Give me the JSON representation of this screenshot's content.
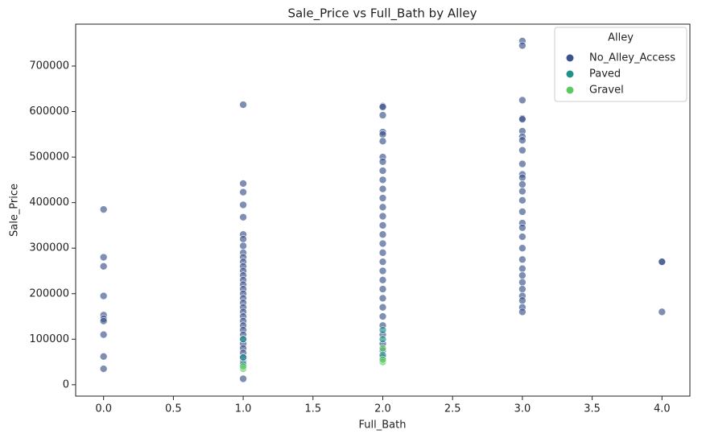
{
  "chart_data": {
    "type": "scatter",
    "title": "Sale_Price vs Full_Bath by Alley",
    "x_label": "Full_Bath",
    "y_label": "Sale_Price",
    "xlim": [
      -0.2,
      4.2
    ],
    "ylim": [
      -25000,
      792000
    ],
    "xticks": [
      {
        "value": 0,
        "label": "0.0"
      },
      {
        "value": 0.5,
        "label": "0.5"
      },
      {
        "value": 1,
        "label": "1.0"
      },
      {
        "value": 1.5,
        "label": "1.5"
      },
      {
        "value": 2,
        "label": "2.0"
      },
      {
        "value": 2.5,
        "label": "2.5"
      },
      {
        "value": 3,
        "label": "3.0"
      },
      {
        "value": 3.5,
        "label": "3.5"
      },
      {
        "value": 4,
        "label": "4.0"
      }
    ],
    "yticks": [
      0,
      100000,
      200000,
      300000,
      400000,
      500000,
      600000,
      700000
    ],
    "grid": false,
    "legend_title": "Alley",
    "legend_position": "upper-right",
    "series": [
      {
        "name": "No_Alley_Access",
        "color": "#3b528b",
        "x": [
          0,
          0,
          0,
          0,
          0,
          0,
          0,
          0,
          0,
          0,
          1,
          1,
          1,
          1,
          1,
          1,
          1,
          1,
          1,
          1,
          1,
          1,
          1,
          1,
          1,
          1,
          1,
          1,
          1,
          1,
          1,
          1,
          1,
          1,
          1,
          1,
          1,
          1,
          1,
          1,
          1,
          1,
          1,
          1,
          2,
          2,
          2,
          2,
          2,
          2,
          2,
          2,
          2,
          2,
          2,
          2,
          2,
          2,
          2,
          2,
          2,
          2,
          2,
          2,
          2,
          2,
          2,
          2,
          2,
          2,
          2,
          2,
          2,
          2,
          3,
          3,
          3,
          3,
          3,
          3,
          3,
          3,
          3,
          3,
          3,
          3,
          3,
          3,
          3,
          3,
          3,
          3,
          3,
          3,
          3,
          3,
          3,
          3,
          3,
          3,
          3,
          3,
          3,
          4,
          4,
          4
        ],
        "values": [
          385000,
          280000,
          260000,
          195000,
          153000,
          145000,
          140000,
          110000,
          62000,
          35000,
          615000,
          442000,
          423000,
          395000,
          368000,
          330000,
          320000,
          305000,
          290000,
          280000,
          270000,
          260000,
          250000,
          240000,
          230000,
          220000,
          210000,
          200000,
          190000,
          180000,
          170000,
          160000,
          150000,
          140000,
          130000,
          120000,
          110000,
          100000,
          90000,
          80000,
          70000,
          60000,
          50000,
          13000,
          612000,
          610000,
          592000,
          555000,
          550000,
          535000,
          500000,
          490000,
          470000,
          450000,
          430000,
          410000,
          390000,
          370000,
          350000,
          330000,
          310000,
          290000,
          270000,
          250000,
          230000,
          210000,
          190000,
          170000,
          150000,
          130000,
          110000,
          90000,
          75000,
          60000,
          755000,
          745000,
          625000,
          585000,
          583000,
          557000,
          545000,
          537000,
          515000,
          485000,
          462000,
          455000,
          440000,
          425000,
          405000,
          380000,
          355000,
          345000,
          325000,
          300000,
          275000,
          255000,
          240000,
          225000,
          210000,
          195000,
          185000,
          170000,
          160000,
          270000,
          270000,
          160000
        ]
      },
      {
        "name": "Paved",
        "color": "#21918c",
        "x": [
          1,
          1,
          1,
          2,
          2,
          2
        ],
        "values": [
          45000,
          60000,
          100000,
          65000,
          100000,
          120000
        ]
      },
      {
        "name": "Gravel",
        "color": "#5ec962",
        "x": [
          1,
          1,
          2,
          2,
          2
        ],
        "values": [
          35000,
          40000,
          50000,
          55000,
          80000
        ]
      }
    ]
  }
}
